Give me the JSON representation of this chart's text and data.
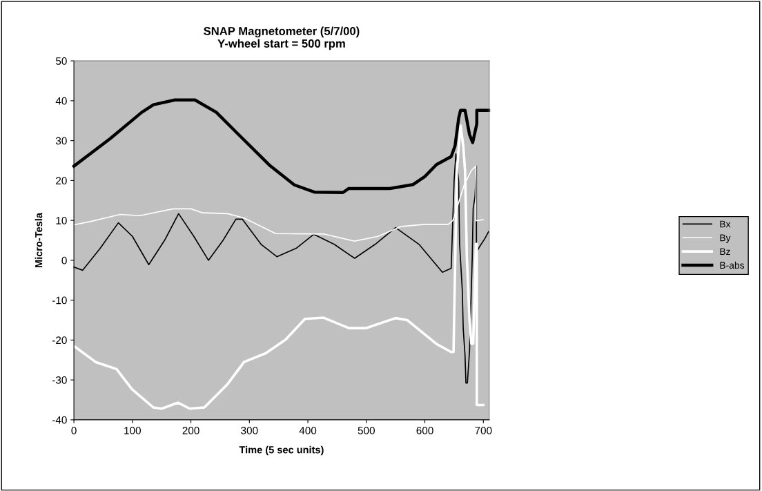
{
  "chart_data": {
    "type": "line",
    "title": "SNAP Magnetometer (5/7/00)\nY-wheel start = 500 rpm",
    "xlabel": "Time (5 sec units)",
    "ylabel": "Micro-Tesla",
    "xlim": [
      0,
      710
    ],
    "xticks": [
      0,
      100,
      200,
      300,
      400,
      500,
      600,
      700
    ],
    "ylim": [
      -40,
      50
    ],
    "yticks": [
      -40,
      -30,
      -20,
      -10,
      0,
      10,
      20,
      30,
      40,
      50
    ],
    "grid": false,
    "legend": "right",
    "marker": "none",
    "line_style": "solid",
    "series": [
      {
        "name": "Bx",
        "color": "#000000",
        "x": [
          0,
          15,
          45,
          76,
          100,
          128,
          155,
          179,
          205,
          230,
          255,
          277,
          288,
          320,
          347,
          380,
          410,
          445,
          480,
          515,
          550,
          590,
          630,
          645,
          650,
          653,
          657.8,
          659.4,
          664,
          665.6,
          668.7,
          670.2,
          672.7,
          676.4,
          681,
          682.6,
          685.7,
          688.2,
          688.2,
          693.5,
          702.8,
          709
        ],
        "values": [
          -1.7,
          -2.5,
          3,
          9.4,
          6,
          -1.1,
          5,
          11.7,
          6,
          0,
          5,
          10.3,
          10.3,
          4,
          0.9,
          3,
          6.5,
          4,
          0.5,
          4,
          8.2,
          4,
          -3,
          -2,
          20,
          26.7,
          19.8,
          4.1,
          -7.5,
          -17.1,
          -24,
          -30.8,
          -30.8,
          -22.6,
          0.7,
          13,
          16,
          23.6,
          2,
          3.4,
          5.5,
          7.2
        ]
      },
      {
        "name": "By",
        "color": "#ffffff",
        "x": [
          0,
          28,
          79,
          113,
          170,
          200,
          220,
          263,
          291,
          345,
          427,
          480,
          520,
          560,
          600,
          640,
          648,
          651.6,
          667,
          679.5,
          687.3,
          687.3,
          699.7
        ],
        "values": [
          8.9,
          9.7,
          11.5,
          11.2,
          12.9,
          12.9,
          11.9,
          11.7,
          10.6,
          6.7,
          6.6,
          4.8,
          6,
          8.5,
          9,
          9,
          10,
          11.6,
          18.8,
          22.5,
          23.6,
          9.9,
          10.2
        ]
      },
      {
        "name": "Bz",
        "color": "#ffffff",
        "x": [
          0,
          37,
          73,
          99,
          136,
          150,
          178,
          198,
          223,
          263,
          291,
          328,
          362,
          395,
          427,
          470,
          500,
          550,
          570,
          620,
          645,
          649,
          654.7,
          661,
          665.6,
          668.7,
          671.8,
          676.4,
          679.5,
          682.6,
          687.3,
          688.8,
          688.8,
          699.7
        ],
        "values": [
          -21.5,
          -25.5,
          -27.3,
          -32.3,
          -36.9,
          -37.2,
          -35.7,
          -37.2,
          -36.9,
          -31,
          -25.5,
          -23.3,
          -19.9,
          -14.7,
          -14.4,
          -17,
          -17,
          -14.5,
          -15,
          -21,
          -23,
          -23,
          22.5,
          33.8,
          28.7,
          22.5,
          0.7,
          -15.1,
          -20.9,
          -20.9,
          4.1,
          4.1,
          -36.3,
          -36.3
        ]
      },
      {
        "name": "B-abs",
        "color": "#000000",
        "x": [
          0,
          62,
          116,
          136,
          172.6,
          207,
          243.5,
          277.6,
          334,
          376.8,
          411,
          460,
          470,
          540,
          580,
          600,
          620,
          645,
          651.6,
          657.8,
          661,
          668.7,
          676.4,
          681.7,
          688.8,
          688.8,
          709
        ],
        "values": [
          23.6,
          30.5,
          37.1,
          39,
          40.2,
          40.2,
          37.1,
          32.1,
          23.9,
          18.9,
          17.1,
          17,
          18,
          18,
          19,
          21,
          24,
          26,
          28.7,
          35.6,
          37.6,
          37.6,
          31.5,
          29.5,
          34.2,
          37.6,
          37.6
        ]
      }
    ]
  }
}
